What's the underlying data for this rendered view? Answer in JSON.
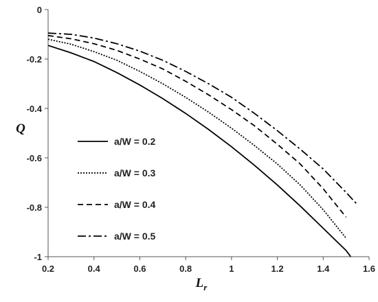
{
  "chart_data": {
    "type": "line",
    "title": "",
    "xlabel": "L",
    "xlabel_sub": "r",
    "ylabel": "Q",
    "xlim": [
      0.2,
      1.6
    ],
    "ylim": [
      -1,
      0
    ],
    "xticks": [
      0.2,
      0.4,
      0.6,
      0.8,
      1,
      1.2,
      1.4,
      1.6
    ],
    "yticks": [
      0,
      -0.2,
      -0.4,
      -0.6,
      -0.8,
      -1
    ],
    "xtick_labels": [
      "0.2",
      "0.4",
      "0.6",
      "0.8",
      "1",
      "1.2",
      "1.4",
      "1.6"
    ],
    "ytick_labels": [
      "0",
      "-0.2",
      "-0.4",
      "-0.6",
      "-0.8",
      "-1"
    ],
    "grid": false,
    "legend_position": "left-middle",
    "series": [
      {
        "name": "a/W = 0.2",
        "dash": "solid",
        "x": [
          0.2,
          0.3,
          0.4,
          0.5,
          0.6,
          0.7,
          0.8,
          0.9,
          1.0,
          1.1,
          1.2,
          1.3,
          1.4,
          1.5,
          1.52
        ],
        "y": [
          -0.145,
          -0.175,
          -0.21,
          -0.255,
          -0.305,
          -0.36,
          -0.42,
          -0.485,
          -0.555,
          -0.63,
          -0.71,
          -0.795,
          -0.885,
          -0.975,
          -1.0
        ]
      },
      {
        "name": "a/W = 0.3",
        "dash": "dotted",
        "x": [
          0.2,
          0.3,
          0.4,
          0.5,
          0.6,
          0.7,
          0.8,
          0.9,
          1.0,
          1.1,
          1.2,
          1.3,
          1.4,
          1.5
        ],
        "y": [
          -0.12,
          -0.14,
          -0.17,
          -0.205,
          -0.25,
          -0.3,
          -0.355,
          -0.415,
          -0.48,
          -0.55,
          -0.625,
          -0.71,
          -0.81,
          -0.925
        ]
      },
      {
        "name": "a/W = 0.4",
        "dash": "dashed",
        "x": [
          0.2,
          0.3,
          0.4,
          0.5,
          0.6,
          0.7,
          0.8,
          0.9,
          1.0,
          1.1,
          1.2,
          1.3,
          1.4,
          1.5
        ],
        "y": [
          -0.105,
          -0.118,
          -0.138,
          -0.165,
          -0.2,
          -0.24,
          -0.29,
          -0.345,
          -0.405,
          -0.47,
          -0.545,
          -0.625,
          -0.725,
          -0.84
        ]
      },
      {
        "name": "a/W = 0.5",
        "dash": "dashdot",
        "x": [
          0.2,
          0.3,
          0.4,
          0.5,
          0.6,
          0.7,
          0.8,
          0.9,
          1.0,
          1.1,
          1.2,
          1.3,
          1.4,
          1.5,
          1.55
        ],
        "y": [
          -0.095,
          -0.1,
          -0.115,
          -0.138,
          -0.168,
          -0.205,
          -0.25,
          -0.3,
          -0.355,
          -0.42,
          -0.49,
          -0.565,
          -0.645,
          -0.74,
          -0.79
        ]
      }
    ]
  }
}
